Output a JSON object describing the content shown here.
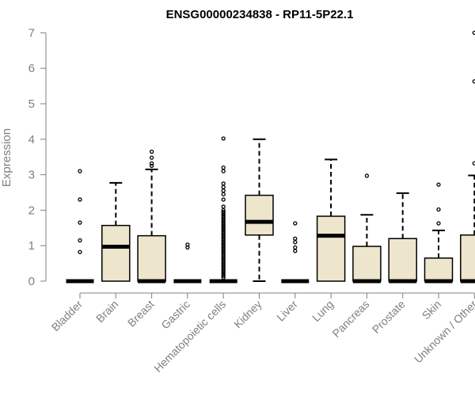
{
  "chart_data": {
    "type": "box",
    "title": "ENSG00000234838 - RP11-5P22.1",
    "xlabel": "",
    "ylabel": "Expression",
    "ylim": [
      0,
      7
    ],
    "yticks": [
      0,
      1,
      2,
      3,
      4,
      5,
      6,
      7
    ],
    "grid": false,
    "colors": {
      "box_fill": "#ede6cc",
      "box_stroke": "#000000",
      "axis": "#808080",
      "title": "#000000"
    },
    "categories": [
      "Bladder",
      "Brain",
      "Breast",
      "Gastric",
      "Hematopoietic cells",
      "Kidney",
      "Liver",
      "Lung",
      "Pancreas",
      "Prostate",
      "Skin",
      "Unknown / Other"
    ],
    "boxes": [
      {
        "category": "Bladder",
        "q1": 0,
        "median": 0,
        "q3": 0,
        "whisker_low": 0,
        "whisker_high": 0,
        "outliers": [
          3.1,
          2.3,
          1.65,
          1.15,
          0.82
        ]
      },
      {
        "category": "Brain",
        "q1": 0,
        "median": 0.97,
        "q3": 1.57,
        "whisker_low": 0,
        "whisker_high": 2.77,
        "outliers": []
      },
      {
        "category": "Breast",
        "q1": 0,
        "median": 0,
        "q3": 1.28,
        "whisker_low": 0,
        "whisker_high": 3.15,
        "outliers": [
          3.65,
          3.48,
          3.32,
          3.25
        ]
      },
      {
        "category": "Gastric",
        "q1": 0,
        "median": 0,
        "q3": 0,
        "whisker_low": 0,
        "whisker_high": 0,
        "outliers": [
          1.03,
          0.95
        ]
      },
      {
        "category": "Hematopoietic cells",
        "q1": 0,
        "median": 0,
        "q3": 0,
        "whisker_low": 0,
        "whisker_high": 0,
        "outliers": [
          4.02,
          3.2,
          3.1,
          2.75,
          2.65,
          2.55,
          2.45,
          2.3,
          2.1,
          2.0,
          1.95,
          1.9,
          1.85,
          1.8,
          1.75,
          1.7,
          1.65,
          1.6,
          1.55,
          1.5,
          1.45,
          1.4,
          1.35,
          1.3,
          1.25,
          1.2,
          1.15,
          1.1,
          1.05,
          1.0,
          0.95,
          0.9,
          0.85,
          0.8,
          0.75,
          0.7,
          0.65,
          0.6,
          0.55,
          0.5,
          0.45,
          0.4,
          0.35,
          0.3,
          0.25,
          0.2,
          0.15,
          0.1
        ]
      },
      {
        "category": "Kidney",
        "q1": 1.3,
        "median": 1.67,
        "q3": 2.42,
        "whisker_low": 0,
        "whisker_high": 4.0,
        "outliers": []
      },
      {
        "category": "Liver",
        "q1": 0,
        "median": 0,
        "q3": 0,
        "whisker_low": 0,
        "whisker_high": 0,
        "outliers": [
          1.63,
          1.2,
          1.1,
          0.95,
          0.85
        ]
      },
      {
        "category": "Lung",
        "q1": 0,
        "median": 1.28,
        "q3": 1.83,
        "whisker_low": 0,
        "whisker_high": 3.43,
        "outliers": []
      },
      {
        "category": "Pancreas",
        "q1": 0,
        "median": 0,
        "q3": 0.98,
        "whisker_low": 0,
        "whisker_high": 1.87,
        "outliers": [
          2.97
        ]
      },
      {
        "category": "Prostate",
        "q1": 0,
        "median": 0,
        "q3": 1.2,
        "whisker_low": 0,
        "whisker_high": 2.48,
        "outliers": []
      },
      {
        "category": "Skin",
        "q1": 0,
        "median": 0,
        "q3": 0.65,
        "whisker_low": 0,
        "whisker_high": 1.43,
        "outliers": [
          2.72,
          2.02,
          1.63
        ]
      },
      {
        "category": "Unknown / Other",
        "q1": 0,
        "median": 0,
        "q3": 1.3,
        "whisker_low": 0,
        "whisker_high": 2.98,
        "outliers": [
          7.0,
          5.63,
          3.32
        ]
      }
    ]
  }
}
